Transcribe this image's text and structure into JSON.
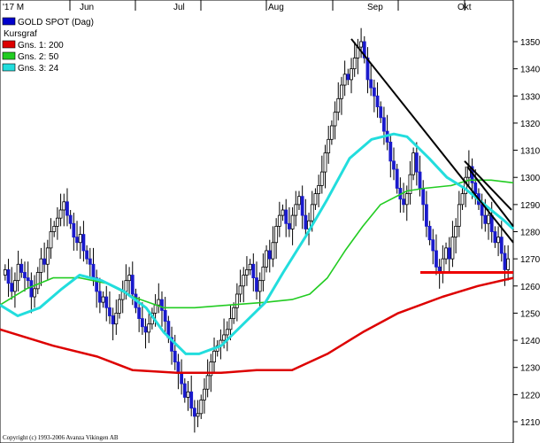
{
  "chart_data": {
    "type": "candlestick",
    "y_ticks": [
      1210,
      1220,
      1230,
      1240,
      1250,
      1260,
      1270,
      1280,
      1290,
      1300,
      1310,
      1320,
      1330,
      1340,
      1350
    ],
    "ylim": [
      1203,
      1360
    ],
    "x_tick_labels": [
      "'17 M",
      "Jun",
      "Jul",
      "Aug",
      "Sep",
      "Okt"
    ],
    "legend": [
      {
        "name": "GOLD SPOT (Dag)",
        "color": "#0000cc",
        "swatch": true
      },
      {
        "name": "Kursgraf",
        "color": "#000000",
        "swatch": false
      },
      {
        "name": "Gns. 1: 200",
        "color": "#dd0000",
        "swatch": true
      },
      {
        "name": "Gns. 2: 50",
        "color": "#22cc22",
        "swatch": true
      },
      {
        "name": "Gns. 3: 24",
        "color": "#22dddd",
        "swatch": true
      }
    ],
    "copyright": "Copyright (c) 1993-2006 Avanza Vikingen AB",
    "closes": [
      1266,
      1261,
      1258,
      1262,
      1268,
      1265,
      1263,
      1262,
      1256,
      1259,
      1265,
      1270,
      1268,
      1274,
      1280,
      1282,
      1285,
      1288,
      1291,
      1286,
      1283,
      1278,
      1276,
      1279,
      1273,
      1270,
      1268,
      1263,
      1258,
      1254,
      1256,
      1252,
      1249,
      1246,
      1250,
      1255,
      1258,
      1262,
      1264,
      1257,
      1252,
      1248,
      1245,
      1243,
      1246,
      1250,
      1253,
      1255,
      1251,
      1247,
      1241,
      1236,
      1232,
      1228,
      1224,
      1219,
      1221,
      1215,
      1212,
      1213,
      1218,
      1222,
      1227,
      1232,
      1236,
      1238,
      1240,
      1242,
      1244,
      1248,
      1252,
      1257,
      1260,
      1264,
      1266,
      1268,
      1263,
      1258,
      1262,
      1267,
      1273,
      1270,
      1276,
      1282,
      1286,
      1288,
      1283,
      1281,
      1286,
      1290,
      1293,
      1286,
      1281,
      1284,
      1290,
      1294,
      1297,
      1302,
      1309,
      1314,
      1319,
      1324,
      1329,
      1334,
      1338,
      1336,
      1340,
      1344,
      1348,
      1350,
      1344,
      1336,
      1333,
      1330,
      1326,
      1322,
      1317,
      1313,
      1306,
      1303,
      1296,
      1292,
      1290,
      1294,
      1301,
      1309,
      1302,
      1296,
      1290,
      1282,
      1277,
      1273,
      1267,
      1265,
      1270,
      1274,
      1270,
      1278,
      1282,
      1290,
      1294,
      1300,
      1304,
      1298,
      1294,
      1290,
      1286,
      1283,
      1286,
      1280,
      1276,
      1278,
      1272,
      1266,
      1270
    ],
    "ma_200": [
      [
        0,
        1244
      ],
      [
        60,
        1238
      ],
      [
        110,
        1234
      ],
      [
        150,
        1229
      ],
      [
        200,
        1228
      ],
      [
        250,
        1228
      ],
      [
        290,
        1229
      ],
      [
        330,
        1229
      ],
      [
        370,
        1235
      ],
      [
        410,
        1243
      ],
      [
        450,
        1250
      ],
      [
        500,
        1256
      ],
      [
        540,
        1260
      ],
      [
        580,
        1263
      ]
    ],
    "ma_50": [
      [
        0,
        1253
      ],
      [
        30,
        1259
      ],
      [
        60,
        1263
      ],
      [
        90,
        1263
      ],
      [
        120,
        1261
      ],
      [
        150,
        1256
      ],
      [
        185,
        1252
      ],
      [
        220,
        1252
      ],
      [
        260,
        1253
      ],
      [
        300,
        1254
      ],
      [
        330,
        1255
      ],
      [
        350,
        1257
      ],
      [
        370,
        1263
      ],
      [
        390,
        1273
      ],
      [
        410,
        1282
      ],
      [
        430,
        1290
      ],
      [
        460,
        1295
      ],
      [
        480,
        1296
      ],
      [
        510,
        1297
      ],
      [
        530,
        1299
      ],
      [
        555,
        1299
      ],
      [
        580,
        1298
      ]
    ],
    "ma_24": [
      [
        0,
        1253
      ],
      [
        20,
        1249
      ],
      [
        45,
        1252
      ],
      [
        70,
        1259
      ],
      [
        90,
        1264
      ],
      [
        115,
        1262
      ],
      [
        140,
        1258
      ],
      [
        165,
        1252
      ],
      [
        185,
        1243
      ],
      [
        210,
        1235
      ],
      [
        225,
        1235
      ],
      [
        250,
        1238
      ],
      [
        275,
        1246
      ],
      [
        300,
        1254
      ],
      [
        320,
        1265
      ],
      [
        345,
        1278
      ],
      [
        370,
        1292
      ],
      [
        395,
        1307
      ],
      [
        420,
        1314
      ],
      [
        445,
        1316
      ],
      [
        460,
        1315
      ],
      [
        485,
        1307
      ],
      [
        505,
        1300
      ],
      [
        525,
        1296
      ],
      [
        540,
        1292
      ],
      [
        555,
        1288
      ],
      [
        570,
        1284
      ],
      [
        580,
        1281
      ]
    ],
    "resistance_lines": [
      {
        "from": [
          397,
          1351
        ],
        "to": [
          580,
          1276
        ]
      },
      {
        "from": [
          525,
          1306
        ],
        "to": [
          578,
          1288
        ]
      },
      {
        "from": [
          528,
          1304
        ],
        "to": [
          580,
          1282
        ]
      }
    ],
    "support_line": {
      "from": [
        475,
        1265
      ],
      "to": [
        580,
        1265
      ]
    }
  }
}
